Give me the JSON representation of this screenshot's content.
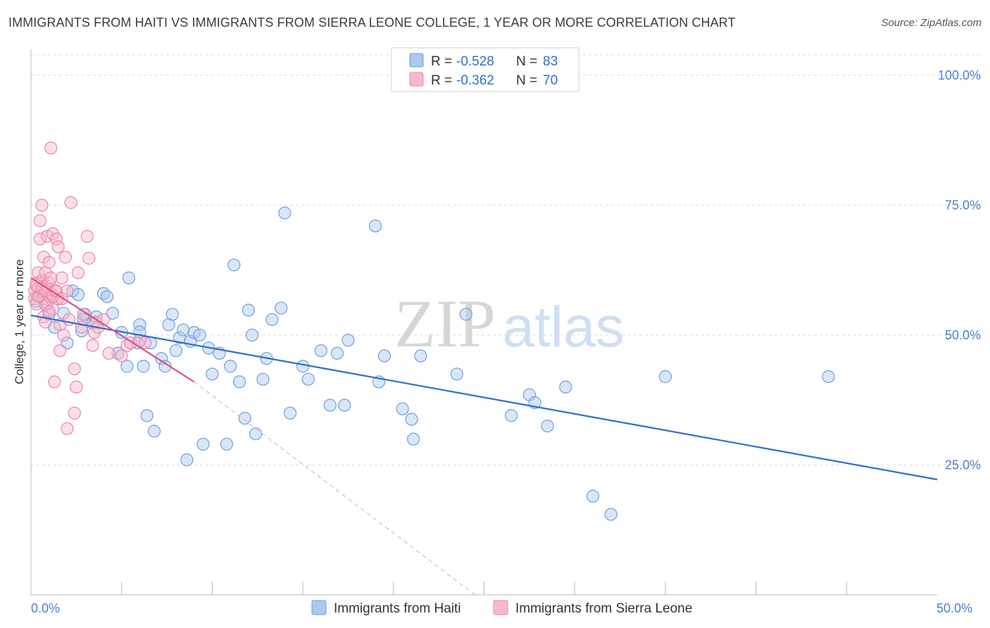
{
  "title": "IMMIGRANTS FROM HAITI VS IMMIGRANTS FROM SIERRA LEONE COLLEGE, 1 YEAR OR MORE CORRELATION CHART",
  "source": "Source: ZipAtlas.com",
  "watermark": {
    "zip": "ZIP",
    "atlas": "atlas"
  },
  "colors": {
    "haiti_fill": "#aac8f0",
    "haiti_stroke": "#6f9fdc",
    "haiti_line": "#2b6fcf",
    "sl_fill": "#f6b8cc",
    "sl_stroke": "#e887a8",
    "sl_line": "#e0507e",
    "tick_label": "#4a7fd0",
    "grid": "#dcdcdc"
  },
  "legend_box": {
    "rows": [
      {
        "r_label": "R = ",
        "r_value": "-0.528",
        "n_label": "N = ",
        "n_value": "83"
      },
      {
        "r_label": "R = ",
        "r_value": "-0.362",
        "n_label": "N = ",
        "n_value": "70"
      }
    ]
  },
  "chart_data": {
    "type": "scatter",
    "title": "IMMIGRANTS FROM HAITI VS IMMIGRANTS FROM SIERRA LEONE COLLEGE, 1 YEAR OR MORE CORRELATION CHART",
    "xlabel": "",
    "ylabel": "College, 1 year or more",
    "xlim": [
      0,
      50
    ],
    "ylim": [
      0,
      105
    ],
    "x_tick_labels": [
      {
        "value": 0,
        "label": "0.0%"
      },
      {
        "value": 50,
        "label": "50.0%"
      }
    ],
    "y_tick_labels": [
      {
        "value": 25,
        "label": "25.0%"
      },
      {
        "value": 50,
        "label": "50.0%"
      },
      {
        "value": 75,
        "label": "75.0%"
      },
      {
        "value": 100,
        "label": "100.0%"
      }
    ],
    "x_minor_ticks": [
      5,
      10,
      15,
      20,
      25,
      30,
      35,
      40,
      45
    ],
    "grid": true,
    "legend_position": "bottom-center",
    "series": [
      {
        "name": "Immigrants from Haiti",
        "R": -0.528,
        "N": 83,
        "trend": {
          "x0": 0,
          "y0": 53.8,
          "x1": 50,
          "y1": 22.2
        },
        "points": [
          [
            0.3,
            56.5
          ],
          [
            0.5,
            58.2
          ],
          [
            0.8,
            55.8
          ],
          [
            1.0,
            54.0
          ],
          [
            1.3,
            51.5
          ],
          [
            1.5,
            57.0
          ],
          [
            1.8,
            54.2
          ],
          [
            2.0,
            48.5
          ],
          [
            2.3,
            58.5
          ],
          [
            2.6,
            57.8
          ],
          [
            2.8,
            50.8
          ],
          [
            3.0,
            54.0
          ],
          [
            3.4,
            52.3
          ],
          [
            3.6,
            53.5
          ],
          [
            4.0,
            58.0
          ],
          [
            4.2,
            57.4
          ],
          [
            4.5,
            54.2
          ],
          [
            4.8,
            46.5
          ],
          [
            5.0,
            50.5
          ],
          [
            5.3,
            44.0
          ],
          [
            5.4,
            61.0
          ],
          [
            5.9,
            48.5
          ],
          [
            6.0,
            52.0
          ],
          [
            6.2,
            44.0
          ],
          [
            6.4,
            34.5
          ],
          [
            6.6,
            48.5
          ],
          [
            6.8,
            31.5
          ],
          [
            7.2,
            45.5
          ],
          [
            7.4,
            44.0
          ],
          [
            7.6,
            52.0
          ],
          [
            7.8,
            54.0
          ],
          [
            8.0,
            47.0
          ],
          [
            8.2,
            49.5
          ],
          [
            8.4,
            51.0
          ],
          [
            8.6,
            26.0
          ],
          [
            8.8,
            48.8
          ],
          [
            9.0,
            50.5
          ],
          [
            9.3,
            50.0
          ],
          [
            9.5,
            29.0
          ],
          [
            9.8,
            47.5
          ],
          [
            10.0,
            42.5
          ],
          [
            10.4,
            46.5
          ],
          [
            10.8,
            29.0
          ],
          [
            11.0,
            44.0
          ],
          [
            11.2,
            63.5
          ],
          [
            11.5,
            41.0
          ],
          [
            11.8,
            34.0
          ],
          [
            12.0,
            54.8
          ],
          [
            12.2,
            50.0
          ],
          [
            12.4,
            31.0
          ],
          [
            12.8,
            41.5
          ],
          [
            13.0,
            45.5
          ],
          [
            13.3,
            53.0
          ],
          [
            13.8,
            55.2
          ],
          [
            14.0,
            73.5
          ],
          [
            14.3,
            35.0
          ],
          [
            15.0,
            44.0
          ],
          [
            15.3,
            41.5
          ],
          [
            16.0,
            47.0
          ],
          [
            16.5,
            36.5
          ],
          [
            16.9,
            46.5
          ],
          [
            17.5,
            49.0
          ],
          [
            17.3,
            36.5
          ],
          [
            19.0,
            71.0
          ],
          [
            19.2,
            41.0
          ],
          [
            19.5,
            46.0
          ],
          [
            20.5,
            35.8
          ],
          [
            21.0,
            33.8
          ],
          [
            21.1,
            30.0
          ],
          [
            21.5,
            46.0
          ],
          [
            23.5,
            42.5
          ],
          [
            24.0,
            54.0
          ],
          [
            26.5,
            34.5
          ],
          [
            27.5,
            38.5
          ],
          [
            27.8,
            37.0
          ],
          [
            28.5,
            32.5
          ],
          [
            29.5,
            40.0
          ],
          [
            31.0,
            19.0
          ],
          [
            32.0,
            15.5
          ],
          [
            35.0,
            42.0
          ],
          [
            44.0,
            42.0
          ],
          [
            6.0,
            50.6
          ],
          [
            2.9,
            53.0
          ]
        ]
      },
      {
        "name": "Immigrants from Sierra Leone",
        "R": -0.362,
        "N": 70,
        "trend": {
          "x0": 0,
          "y0": 61.0,
          "x1": 9,
          "y1": 41.0
        },
        "trend_dashed": {
          "x0": 9,
          "y0": 41.0,
          "x1": 24.5,
          "y1": 0.0
        },
        "points": [
          [
            0.2,
            58.5
          ],
          [
            0.2,
            57.0
          ],
          [
            0.3,
            60.0
          ],
          [
            0.3,
            56.0
          ],
          [
            0.4,
            62.0
          ],
          [
            0.4,
            59.0
          ],
          [
            0.5,
            57.5
          ],
          [
            0.5,
            72.0
          ],
          [
            0.5,
            68.5
          ],
          [
            0.6,
            75.0
          ],
          [
            0.6,
            60.5
          ],
          [
            0.6,
            58.5
          ],
          [
            0.7,
            65.0
          ],
          [
            0.7,
            53.5
          ],
          [
            0.7,
            57.0
          ],
          [
            0.8,
            62.0
          ],
          [
            0.8,
            59.5
          ],
          [
            0.8,
            52.5
          ],
          [
            0.9,
            58.0
          ],
          [
            0.9,
            56.0
          ],
          [
            0.9,
            69.0
          ],
          [
            1.0,
            64.0
          ],
          [
            1.0,
            60.0
          ],
          [
            1.0,
            57.5
          ],
          [
            1.1,
            61.0
          ],
          [
            1.1,
            58.0
          ],
          [
            1.2,
            55.0
          ],
          [
            1.1,
            86.0
          ],
          [
            1.2,
            69.5
          ],
          [
            1.3,
            58.5
          ],
          [
            1.3,
            41.0
          ],
          [
            1.4,
            68.5
          ],
          [
            1.5,
            67.0
          ],
          [
            1.5,
            57.0
          ],
          [
            1.6,
            52.0
          ],
          [
            1.6,
            47.0
          ],
          [
            1.7,
            61.0
          ],
          [
            1.8,
            50.0
          ],
          [
            1.9,
            65.0
          ],
          [
            2.0,
            58.5
          ],
          [
            2.0,
            32.0
          ],
          [
            2.1,
            53.0
          ],
          [
            2.2,
            75.5
          ],
          [
            2.4,
            43.5
          ],
          [
            2.5,
            40.0
          ],
          [
            2.6,
            62.0
          ],
          [
            2.8,
            51.5
          ],
          [
            2.9,
            54.0
          ],
          [
            3.1,
            69.0
          ],
          [
            3.2,
            64.8
          ],
          [
            3.4,
            48.0
          ],
          [
            3.5,
            50.5
          ],
          [
            3.6,
            52.5
          ],
          [
            3.7,
            51.5
          ],
          [
            4.0,
            53.0
          ],
          [
            4.3,
            46.5
          ],
          [
            5.0,
            46.0
          ],
          [
            5.3,
            48.0
          ],
          [
            5.5,
            48.5
          ],
          [
            6.0,
            49.0
          ],
          [
            6.3,
            48.5
          ],
          [
            2.4,
            35.0
          ],
          [
            0.4,
            57.5
          ],
          [
            0.6,
            59.0
          ],
          [
            0.8,
            58.5
          ],
          [
            1.0,
            54.5
          ],
          [
            1.2,
            57.5
          ],
          [
            1.4,
            58.5
          ],
          [
            1.7,
            57.0
          ],
          [
            0.3,
            59.5
          ]
        ]
      }
    ]
  }
}
